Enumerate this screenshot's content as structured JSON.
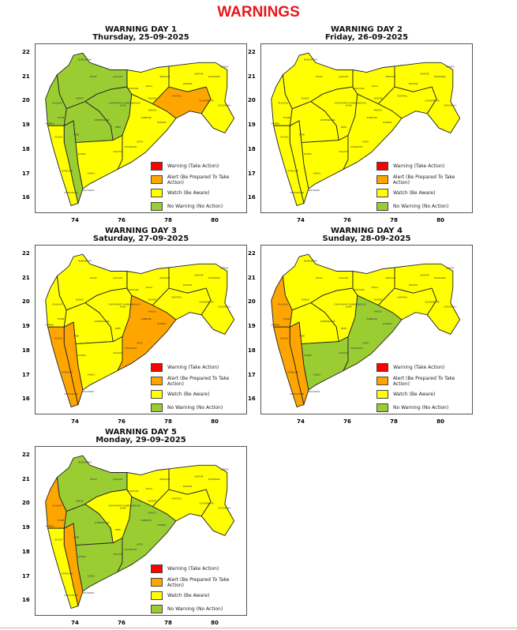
{
  "title": "WARNINGS",
  "colors": {
    "W": "#ff0000",
    "A": "#ffa500",
    "Y": "#ffff00",
    "G": "#9acd32"
  },
  "legend": [
    {
      "key": "W",
      "label": "Warning (Take Action)"
    },
    {
      "key": "A",
      "label": "Alert (Be Prepared To Take Action)"
    },
    {
      "key": "Y",
      "label": "Watch (Be Aware)"
    },
    {
      "key": "G",
      "label": "No Warning (No Action)"
    }
  ],
  "x_ticks": [
    "74",
    "76",
    "78",
    "80"
  ],
  "y_ticks": [
    "16",
    "17",
    "18",
    "19",
    "20",
    "21",
    "22"
  ],
  "district_labels": [
    "NANDURBAR",
    "DHULE",
    "JALGAON",
    "NASHIK",
    "PALGHAR",
    "THANE",
    "MUMBAI",
    "RAIGAD",
    "PUNE",
    "AHMEDNAGAR",
    "CHHATRAPATI SAMBHAJINAGAR",
    "JALNA",
    "BEED",
    "SATARA",
    "SOLAPUR",
    "RATNAGIRI",
    "SANGLI",
    "KOLHAPUR",
    "SINDHUDURG",
    "BULDHANA",
    "AKOLA",
    "WASHIM",
    "AMRAVATI",
    "HINGOLI",
    "PARBHANI",
    "NANDED",
    "LATUR",
    "DHARASHIV",
    "YAVATMAL",
    "WARDHA",
    "NAGPUR",
    "BHANDARA",
    "GONDIA",
    "CHANDRAPUR",
    "GADCHIROLI"
  ],
  "days": [
    {
      "title": "WARNING DAY 1",
      "date": "Thursday, 25-09-2025",
      "levels": {
        "nmah": "G",
        "konkan_n": "G",
        "konkan_s": "Y",
        "ghat": "G",
        "nagar_pune": "G",
        "south_mm": "Y",
        "mw_west": "G",
        "mw_east": "Y",
        "vid_west": "Y",
        "vid_yc": "A",
        "vid_east": "Y"
      }
    },
    {
      "title": "WARNING DAY 2",
      "date": "Friday, 26-09-2025",
      "levels": {
        "nmah": "Y",
        "konkan_n": "Y",
        "konkan_s": "Y",
        "ghat": "Y",
        "nagar_pune": "Y",
        "south_mm": "Y",
        "mw_west": "Y",
        "mw_east": "Y",
        "vid_west": "Y",
        "vid_yc": "Y",
        "vid_east": "Y"
      }
    },
    {
      "title": "WARNING DAY 3",
      "date": "Saturday, 27-09-2025",
      "levels": {
        "nmah": "Y",
        "konkan_n": "Y",
        "konkan_s": "A",
        "ghat": "A",
        "nagar_pune": "Y",
        "south_mm": "Y",
        "mw_west": "Y",
        "mw_east": "A",
        "vid_west": "Y",
        "vid_yc": "Y",
        "vid_east": "Y"
      }
    },
    {
      "title": "WARNING DAY 4",
      "date": "Sunday, 28-09-2025",
      "levels": {
        "nmah": "Y",
        "konkan_n": "A",
        "konkan_s": "A",
        "ghat": "A",
        "nagar_pune": "Y",
        "south_mm": "G",
        "mw_west": "Y",
        "mw_east": "G",
        "vid_west": "Y",
        "vid_yc": "Y",
        "vid_east": "Y"
      }
    },
    {
      "title": "WARNING DAY 5",
      "date": "Monday, 29-09-2025",
      "levels": {
        "nmah": "G",
        "konkan_n": "A",
        "konkan_s": "Y",
        "ghat": "A",
        "nagar_pune": "G",
        "south_mm": "G",
        "mw_west": "Y",
        "mw_east": "G",
        "vid_west": "Y",
        "vid_yc": "Y",
        "vid_east": "Y"
      }
    }
  ]
}
